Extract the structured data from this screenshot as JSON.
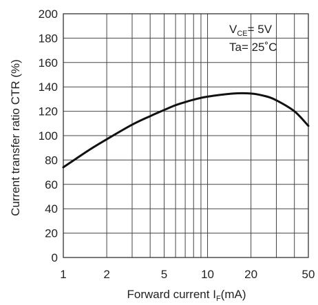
{
  "chart_data": {
    "type": "line",
    "xscale": "log",
    "xlim": [
      1,
      50
    ],
    "ylim": [
      0,
      200
    ],
    "xticks": [
      1,
      2,
      5,
      10,
      20,
      50
    ],
    "xtick_labels": [
      "1",
      "2",
      "5",
      "10",
      "20",
      "50"
    ],
    "x_minor_grid": [
      3,
      4,
      6,
      7,
      8,
      9,
      30,
      40
    ],
    "yticks": [
      0,
      20,
      40,
      60,
      80,
      100,
      120,
      140,
      160,
      180,
      200
    ],
    "ytick_labels": [
      "0",
      "20",
      "40",
      "60",
      "80",
      "100",
      "120",
      "140",
      "160",
      "180",
      "200"
    ],
    "xlabel_main": "Forward current I",
    "xlabel_sub": "F",
    "xlabel_unit": "(mA)",
    "ylabel": "Current transfer ratio CTR (%)",
    "grid": true,
    "annotations": {
      "vce_main": "V",
      "vce_sub": "CE",
      "vce_value": "= 5V",
      "ta": "Ta= 25˚C"
    },
    "series": [
      {
        "x": [
          1,
          1.5,
          2,
          3,
          4,
          5,
          6,
          7,
          8,
          10,
          15,
          20,
          25,
          30,
          40,
          50
        ],
        "y": [
          74,
          88,
          97,
          109,
          116,
          121,
          125,
          127.5,
          129.5,
          132,
          134.5,
          134.5,
          132.5,
          129,
          120,
          108
        ]
      }
    ],
    "line_color": "#111111",
    "grid_color": "#444444"
  }
}
